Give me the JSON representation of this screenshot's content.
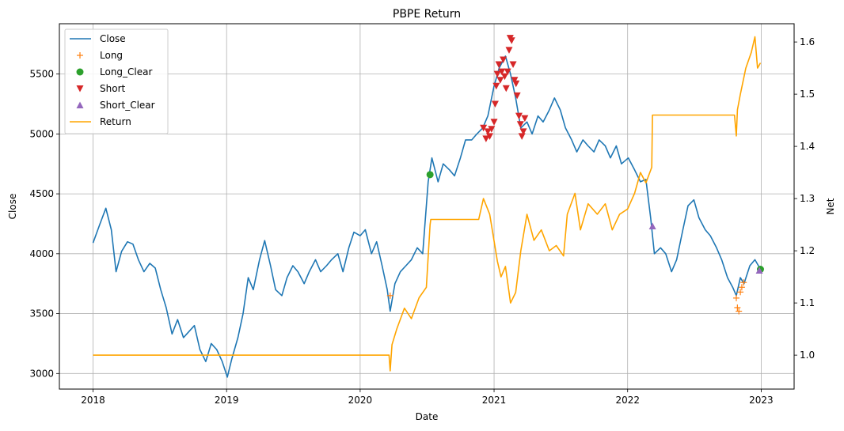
{
  "chart_data": {
    "type": "line",
    "title": "PBPE Return",
    "xlabel": "Date",
    "ylabel": "Close",
    "ylabel_right": "Net",
    "xlim": [
      "2017-10-01",
      "2023-04-01"
    ],
    "ylim": [
      2870,
      5920
    ],
    "ylim_right": [
      0.935,
      1.635
    ],
    "x_ticks": [
      "2018",
      "2019",
      "2020",
      "2021",
      "2022",
      "2023"
    ],
    "y_ticks": [
      3000,
      3500,
      4000,
      4500,
      5000,
      5500
    ],
    "y_ticks_right": [
      1.0,
      1.1,
      1.2,
      1.3,
      1.4,
      1.5,
      1.6
    ],
    "grid": true,
    "legend_position": "top-left",
    "colors": {
      "Close": "#1f77b4",
      "Long": "#ff7f0e",
      "Long_Clear": "#2ca02c",
      "Short": "#d62728",
      "Short_Clear": "#9467bd",
      "Return": "#ffa500"
    },
    "series": [
      {
        "name": "Close",
        "axis": "left",
        "marker": "line",
        "points": [
          [
            "2018-01-01",
            4090
          ],
          [
            "2018-01-20",
            4250
          ],
          [
            "2018-02-05",
            4380
          ],
          [
            "2018-02-20",
            4200
          ],
          [
            "2018-03-05",
            3850
          ],
          [
            "2018-03-20",
            4020
          ],
          [
            "2018-04-05",
            4100
          ],
          [
            "2018-04-20",
            4080
          ],
          [
            "2018-05-05",
            3950
          ],
          [
            "2018-05-20",
            3850
          ],
          [
            "2018-06-05",
            3920
          ],
          [
            "2018-06-20",
            3880
          ],
          [
            "2018-07-05",
            3700
          ],
          [
            "2018-07-20",
            3550
          ],
          [
            "2018-08-05",
            3330
          ],
          [
            "2018-08-20",
            3450
          ],
          [
            "2018-09-05",
            3300
          ],
          [
            "2018-09-20",
            3350
          ],
          [
            "2018-10-05",
            3400
          ],
          [
            "2018-10-20",
            3200
          ],
          [
            "2018-11-05",
            3100
          ],
          [
            "2018-11-20",
            3250
          ],
          [
            "2018-12-05",
            3200
          ],
          [
            "2018-12-20",
            3100
          ],
          [
            "2019-01-03",
            2970
          ],
          [
            "2019-01-15",
            3120
          ],
          [
            "2019-02-01",
            3300
          ],
          [
            "2019-02-15",
            3500
          ],
          [
            "2019-03-01",
            3800
          ],
          [
            "2019-03-15",
            3700
          ],
          [
            "2019-04-01",
            3950
          ],
          [
            "2019-04-15",
            4110
          ],
          [
            "2019-05-01",
            3900
          ],
          [
            "2019-05-15",
            3700
          ],
          [
            "2019-06-01",
            3650
          ],
          [
            "2019-06-15",
            3800
          ],
          [
            "2019-07-01",
            3900
          ],
          [
            "2019-07-15",
            3850
          ],
          [
            "2019-08-01",
            3750
          ],
          [
            "2019-08-15",
            3850
          ],
          [
            "2019-09-01",
            3950
          ],
          [
            "2019-09-15",
            3850
          ],
          [
            "2019-10-01",
            3900
          ],
          [
            "2019-10-15",
            3950
          ],
          [
            "2019-11-01",
            4000
          ],
          [
            "2019-11-15",
            3850
          ],
          [
            "2019-12-01",
            4050
          ],
          [
            "2019-12-15",
            4180
          ],
          [
            "2020-01-01",
            4150
          ],
          [
            "2020-01-15",
            4200
          ],
          [
            "2020-02-01",
            4000
          ],
          [
            "2020-02-15",
            4100
          ],
          [
            "2020-03-01",
            3900
          ],
          [
            "2020-03-15",
            3700
          ],
          [
            "2020-03-23",
            3520
          ],
          [
            "2020-04-05",
            3750
          ],
          [
            "2020-04-20",
            3850
          ],
          [
            "2020-05-05",
            3900
          ],
          [
            "2020-05-20",
            3950
          ],
          [
            "2020-06-05",
            4050
          ],
          [
            "2020-06-20",
            4000
          ],
          [
            "2020-07-05",
            4600
          ],
          [
            "2020-07-15",
            4800
          ],
          [
            "2020-08-01",
            4600
          ],
          [
            "2020-08-15",
            4750
          ],
          [
            "2020-09-01",
            4700
          ],
          [
            "2020-09-15",
            4650
          ],
          [
            "2020-10-01",
            4800
          ],
          [
            "2020-10-15",
            4950
          ],
          [
            "2020-11-01",
            4950
          ],
          [
            "2020-11-15",
            5000
          ],
          [
            "2020-12-01",
            5050
          ],
          [
            "2020-12-15",
            5150
          ],
          [
            "2021-01-01",
            5400
          ],
          [
            "2021-01-15",
            5550
          ],
          [
            "2021-02-01",
            5650
          ],
          [
            "2021-02-15",
            5500
          ],
          [
            "2021-03-01",
            5300
          ],
          [
            "2021-03-15",
            5050
          ],
          [
            "2021-04-01",
            5100
          ],
          [
            "2021-04-15",
            5000
          ],
          [
            "2021-05-01",
            5150
          ],
          [
            "2021-05-15",
            5100
          ],
          [
            "2021-06-01",
            5200
          ],
          [
            "2021-06-15",
            5300
          ],
          [
            "2021-07-01",
            5200
          ],
          [
            "2021-07-15",
            5050
          ],
          [
            "2021-08-01",
            4950
          ],
          [
            "2021-08-15",
            4850
          ],
          [
            "2021-09-01",
            4950
          ],
          [
            "2021-09-15",
            4900
          ],
          [
            "2021-10-01",
            4850
          ],
          [
            "2021-10-15",
            4950
          ],
          [
            "2021-11-01",
            4900
          ],
          [
            "2021-11-15",
            4800
          ],
          [
            "2021-12-01",
            4900
          ],
          [
            "2021-12-15",
            4750
          ],
          [
            "2022-01-03",
            4800
          ],
          [
            "2022-01-20",
            4700
          ],
          [
            "2022-02-05",
            4600
          ],
          [
            "2022-02-20",
            4620
          ],
          [
            "2022-03-05",
            4300
          ],
          [
            "2022-03-15",
            4000
          ],
          [
            "2022-04-01",
            4050
          ],
          [
            "2022-04-15",
            4000
          ],
          [
            "2022-05-01",
            3850
          ],
          [
            "2022-05-15",
            3950
          ],
          [
            "2022-06-01",
            4200
          ],
          [
            "2022-06-15",
            4400
          ],
          [
            "2022-07-01",
            4450
          ],
          [
            "2022-07-15",
            4300
          ],
          [
            "2022-08-01",
            4200
          ],
          [
            "2022-08-15",
            4150
          ],
          [
            "2022-09-01",
            4050
          ],
          [
            "2022-09-15",
            3950
          ],
          [
            "2022-10-01",
            3800
          ],
          [
            "2022-10-15",
            3720
          ],
          [
            "2022-10-25",
            3650
          ],
          [
            "2022-11-05",
            3800
          ],
          [
            "2022-11-15",
            3750
          ],
          [
            "2022-12-01",
            3900
          ],
          [
            "2022-12-15",
            3950
          ],
          [
            "2022-12-30",
            3870
          ]
        ]
      },
      {
        "name": "Long",
        "axis": "left",
        "marker": "+",
        "points": [
          [
            "2020-03-23",
            3650
          ],
          [
            "2022-10-25",
            3630
          ],
          [
            "2022-10-28",
            3550
          ],
          [
            "2022-11-01",
            3520
          ],
          [
            "2022-11-05",
            3680
          ],
          [
            "2022-11-09",
            3720
          ],
          [
            "2022-11-14",
            3760
          ]
        ]
      },
      {
        "name": "Long_Clear",
        "axis": "left",
        "marker": "o",
        "points": [
          [
            "2020-07-10",
            4660
          ],
          [
            "2022-12-30",
            3870
          ]
        ]
      },
      {
        "name": "Short",
        "axis": "left",
        "marker": "v",
        "points": [
          [
            "2020-12-03",
            5050
          ],
          [
            "2020-12-10",
            4960
          ],
          [
            "2020-12-15",
            5020
          ],
          [
            "2020-12-20",
            4980
          ],
          [
            "2020-12-25",
            5040
          ],
          [
            "2021-01-01",
            5100
          ],
          [
            "2021-01-04",
            5250
          ],
          [
            "2021-01-07",
            5400
          ],
          [
            "2021-01-10",
            5500
          ],
          [
            "2021-01-14",
            5580
          ],
          [
            "2021-01-18",
            5450
          ],
          [
            "2021-01-22",
            5520
          ],
          [
            "2021-01-26",
            5620
          ],
          [
            "2021-01-30",
            5480
          ],
          [
            "2021-02-03",
            5380
          ],
          [
            "2021-02-07",
            5520
          ],
          [
            "2021-02-11",
            5700
          ],
          [
            "2021-02-14",
            5800
          ],
          [
            "2021-02-18",
            5780
          ],
          [
            "2021-02-22",
            5580
          ],
          [
            "2021-02-26",
            5450
          ],
          [
            "2021-03-02",
            5420
          ],
          [
            "2021-03-05",
            5320
          ],
          [
            "2021-03-10",
            5150
          ],
          [
            "2021-03-14",
            5080
          ],
          [
            "2021-03-18",
            4980
          ],
          [
            "2021-03-22",
            5020
          ],
          [
            "2021-03-26",
            5130
          ]
        ]
      },
      {
        "name": "Short_Clear",
        "axis": "left",
        "marker": "^",
        "points": [
          [
            "2022-03-10",
            4230
          ],
          [
            "2022-12-27",
            3860
          ]
        ]
      },
      {
        "name": "Return",
        "axis": "right",
        "marker": "line",
        "points": [
          [
            "2018-01-01",
            1.0
          ],
          [
            "2020-03-20",
            1.0
          ],
          [
            "2020-03-23",
            0.97
          ],
          [
            "2020-03-28",
            1.02
          ],
          [
            "2020-04-10",
            1.05
          ],
          [
            "2020-05-01",
            1.09
          ],
          [
            "2020-05-20",
            1.07
          ],
          [
            "2020-06-10",
            1.11
          ],
          [
            "2020-06-30",
            1.13
          ],
          [
            "2020-07-10",
            1.25
          ],
          [
            "2020-07-12",
            1.26
          ],
          [
            "2020-11-20",
            1.26
          ],
          [
            "2020-12-03",
            1.3
          ],
          [
            "2020-12-20",
            1.27
          ],
          [
            "2021-01-10",
            1.18
          ],
          [
            "2021-01-20",
            1.15
          ],
          [
            "2021-02-01",
            1.17
          ],
          [
            "2021-02-15",
            1.1
          ],
          [
            "2021-03-01",
            1.12
          ],
          [
            "2021-03-15",
            1.2
          ],
          [
            "2021-04-01",
            1.27
          ],
          [
            "2021-04-20",
            1.22
          ],
          [
            "2021-05-10",
            1.24
          ],
          [
            "2021-06-01",
            1.2
          ],
          [
            "2021-06-20",
            1.21
          ],
          [
            "2021-07-10",
            1.19
          ],
          [
            "2021-07-20",
            1.27
          ],
          [
            "2021-08-10",
            1.31
          ],
          [
            "2021-08-25",
            1.24
          ],
          [
            "2021-09-15",
            1.29
          ],
          [
            "2021-10-10",
            1.27
          ],
          [
            "2021-11-01",
            1.29
          ],
          [
            "2021-11-20",
            1.24
          ],
          [
            "2021-12-10",
            1.27
          ],
          [
            "2022-01-01",
            1.28
          ],
          [
            "2022-01-20",
            1.31
          ],
          [
            "2022-02-05",
            1.35
          ],
          [
            "2022-02-20",
            1.33
          ],
          [
            "2022-03-08",
            1.36
          ],
          [
            "2022-03-10",
            1.46
          ],
          [
            "2022-10-20",
            1.46
          ],
          [
            "2022-10-25",
            1.42
          ],
          [
            "2022-10-28",
            1.47
          ],
          [
            "2022-11-05",
            1.5
          ],
          [
            "2022-11-20",
            1.55
          ],
          [
            "2022-12-05",
            1.58
          ],
          [
            "2022-12-15",
            1.61
          ],
          [
            "2022-12-22",
            1.55
          ],
          [
            "2022-12-30",
            1.56
          ]
        ]
      }
    ]
  }
}
